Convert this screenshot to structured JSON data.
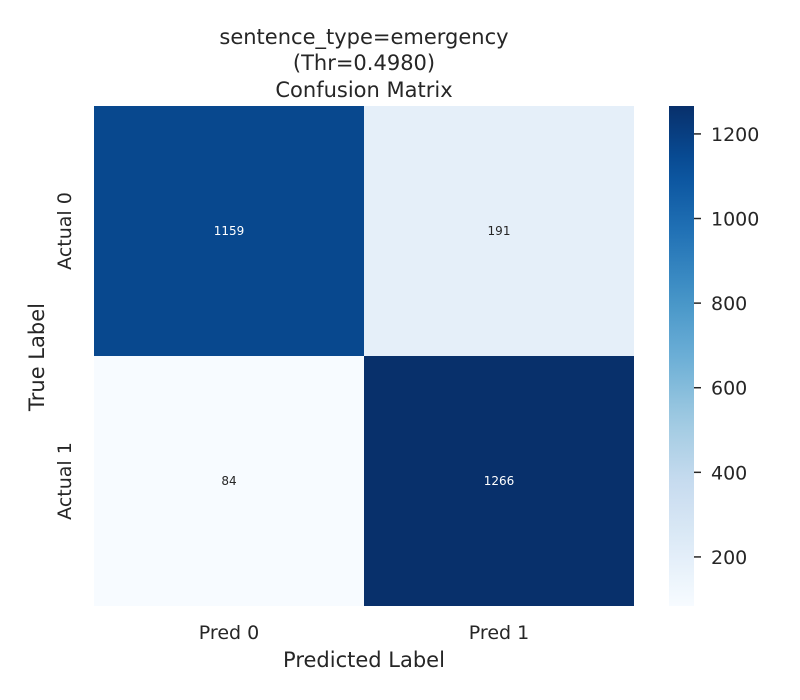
{
  "chart_data": {
    "type": "heatmap",
    "title_lines": [
      "sentence_type=emergency",
      "(Thr=0.4980)",
      "Confusion Matrix"
    ],
    "xlabel": "Predicted Label",
    "ylabel": "True Label",
    "x_categories": [
      "Pred 0",
      "Pred 1"
    ],
    "y_categories": [
      "Actual 0",
      "Actual 1"
    ],
    "values": [
      [
        1159,
        191
      ],
      [
        84,
        1266
      ]
    ],
    "colormap": "Blues",
    "colorbar": {
      "range": [
        84,
        1266
      ],
      "ticks": [
        200,
        400,
        600,
        800,
        1000,
        1200
      ]
    },
    "grid": false
  }
}
